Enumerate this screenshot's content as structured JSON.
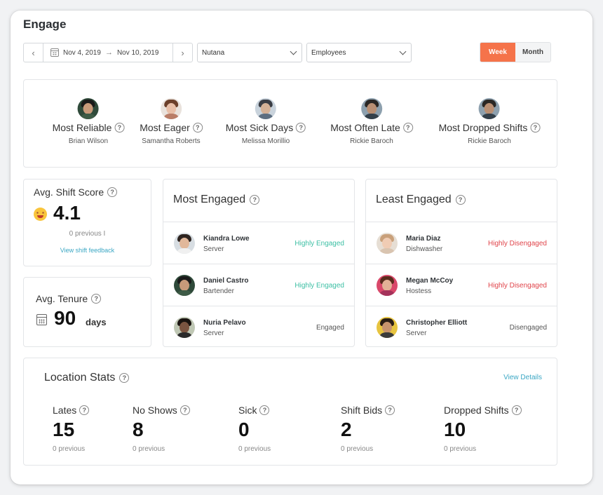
{
  "title": "Engage",
  "toolbar": {
    "start_date": "Nov 4, 2019",
    "end_date": "Nov 10, 2019",
    "location": "Nutana",
    "employees": "Employees",
    "week": "Week",
    "month": "Month"
  },
  "awards": [
    {
      "label": "Most Reliable",
      "name": "Brian Wilson"
    },
    {
      "label": "Most Eager",
      "name": "Samantha Roberts"
    },
    {
      "label": "Most Sick Days",
      "name": "Melissa Morillio"
    },
    {
      "label": "Most Often Late",
      "name": "Rickie Baroch"
    },
    {
      "label": "Most Dropped Shifts",
      "name": "Rickie Baroch"
    }
  ],
  "shift_score": {
    "title": "Avg. Shift Score",
    "value": "4.1",
    "previous": "0 previous I",
    "link": "View shift feedback"
  },
  "tenure": {
    "title": "Avg. Tenure",
    "value": "90",
    "unit": "days"
  },
  "most_engaged": {
    "title": "Most Engaged",
    "rows": [
      {
        "name": "Kiandra Lowe",
        "role": "Server",
        "status": "Highly Engaged"
      },
      {
        "name": "Daniel Castro",
        "role": "Bartender",
        "status": "Highly Engaged"
      },
      {
        "name": "Nuria Pelavo",
        "role": "Server",
        "status": "Engaged"
      }
    ]
  },
  "least_engaged": {
    "title": "Least Engaged",
    "rows": [
      {
        "name": "Maria Diaz",
        "role": "Dishwasher",
        "status": "Highly Disengaged"
      },
      {
        "name": "Megan McCoy",
        "role": "Hostess",
        "status": "Highly Disengaged"
      },
      {
        "name": "Christopher Elliott",
        "role": "Server",
        "status": "Disengaged"
      }
    ]
  },
  "location_stats": {
    "title": "Location Stats",
    "view_details": "View Details",
    "stats": [
      {
        "label": "Lates",
        "value": "15",
        "previous": "0 previous"
      },
      {
        "label": "No Shows",
        "value": "8",
        "previous": "0 previous"
      },
      {
        "label": "Sick",
        "value": "0",
        "previous": "0 previous"
      },
      {
        "label": "Shift Bids",
        "value": "2",
        "previous": "0 previous"
      },
      {
        "label": "Dropped Shifts",
        "value": "10",
        "previous": "0 previous"
      }
    ]
  },
  "help_glyph": "?",
  "colors": {
    "accent": "#f5734a",
    "engaged": "#3cbfa4",
    "disengaged": "#e0454b",
    "link": "#3ba7c4"
  }
}
